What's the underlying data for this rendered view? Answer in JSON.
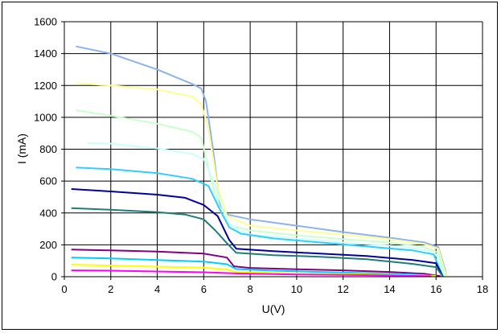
{
  "chart_data": {
    "type": "line",
    "title": "",
    "xlabel": "U(V)",
    "ylabel": "I (mA)",
    "xlim": [
      0,
      18
    ],
    "ylim": [
      0,
      1600
    ],
    "xticks": [
      0,
      2,
      4,
      6,
      8,
      10,
      12,
      14,
      16,
      18
    ],
    "yticks": [
      0,
      200,
      400,
      600,
      800,
      1000,
      1200,
      1400,
      1600
    ],
    "grid": true,
    "legend": "none",
    "series": [
      {
        "color": "#8fb2e8",
        "points": [
          [
            0.5,
            1445
          ],
          [
            2,
            1400
          ],
          [
            4,
            1300
          ],
          [
            5.5,
            1210
          ],
          [
            5.9,
            1180
          ],
          [
            6.1,
            1100
          ],
          [
            6.4,
            800
          ],
          [
            6.7,
            450
          ],
          [
            7,
            390
          ],
          [
            8,
            360
          ],
          [
            10,
            320
          ],
          [
            12,
            280
          ],
          [
            14,
            245
          ],
          [
            15.5,
            215
          ],
          [
            16.1,
            185
          ],
          [
            16.4,
            40
          ],
          [
            16.45,
            0
          ]
        ]
      },
      {
        "color": "#ffff99",
        "points": [
          [
            0.5,
            1215
          ],
          [
            2,
            1200
          ],
          [
            4,
            1175
          ],
          [
            5.5,
            1130
          ],
          [
            5.9,
            1080
          ],
          [
            6.2,
            930
          ],
          [
            6.6,
            560
          ],
          [
            7,
            380
          ],
          [
            8,
            320
          ],
          [
            10,
            290
          ],
          [
            12,
            265
          ],
          [
            14,
            235
          ],
          [
            15.5,
            205
          ],
          [
            16.1,
            175
          ],
          [
            16.45,
            0
          ]
        ]
      },
      {
        "color": "#ccffcc",
        "points": [
          [
            0.5,
            1045
          ],
          [
            2,
            1010
          ],
          [
            4,
            960
          ],
          [
            5.5,
            910
          ],
          [
            5.9,
            870
          ],
          [
            6.3,
            620
          ],
          [
            6.8,
            380
          ],
          [
            7.2,
            320
          ],
          [
            8,
            290
          ],
          [
            10,
            260
          ],
          [
            12,
            235
          ],
          [
            14,
            215
          ],
          [
            15.5,
            185
          ],
          [
            16.1,
            150
          ],
          [
            16.4,
            0
          ]
        ]
      },
      {
        "color": "#ccffff",
        "points": [
          [
            1,
            840
          ],
          [
            2,
            835
          ],
          [
            4,
            805
          ],
          [
            5.5,
            770
          ],
          [
            6,
            740
          ],
          [
            6.5,
            570
          ],
          [
            7,
            345
          ],
          [
            7.5,
            290
          ],
          [
            8,
            265
          ],
          [
            10,
            240
          ],
          [
            12,
            215
          ],
          [
            14,
            195
          ],
          [
            15.5,
            170
          ],
          [
            16,
            140
          ],
          [
            16.4,
            0
          ]
        ]
      },
      {
        "color": "#33ccff",
        "points": [
          [
            0.5,
            685
          ],
          [
            2,
            675
          ],
          [
            4,
            650
          ],
          [
            5.5,
            615
          ],
          [
            6.2,
            570
          ],
          [
            6.7,
            420
          ],
          [
            7.1,
            310
          ],
          [
            7.6,
            270
          ],
          [
            9,
            240
          ],
          [
            11,
            215
          ],
          [
            13,
            190
          ],
          [
            15,
            165
          ],
          [
            15.9,
            140
          ],
          [
            16.3,
            0
          ]
        ]
      },
      {
        "color": "#000099",
        "points": [
          [
            0.3,
            550
          ],
          [
            2,
            535
          ],
          [
            4,
            515
          ],
          [
            5.2,
            495
          ],
          [
            6,
            450
          ],
          [
            6.6,
            380
          ],
          [
            7.1,
            230
          ],
          [
            7.4,
            175
          ],
          [
            9,
            160
          ],
          [
            11,
            145
          ],
          [
            13,
            130
          ],
          [
            15,
            105
          ],
          [
            16,
            85
          ],
          [
            16.3,
            0
          ]
        ]
      },
      {
        "color": "#227b7b",
        "points": [
          [
            0.3,
            430
          ],
          [
            2,
            420
          ],
          [
            4,
            405
          ],
          [
            5.2,
            390
          ],
          [
            6,
            360
          ],
          [
            6.5,
            290
          ],
          [
            7,
            210
          ],
          [
            7.4,
            150
          ],
          [
            9,
            135
          ],
          [
            11,
            125
          ],
          [
            13,
            110
          ],
          [
            15,
            80
          ],
          [
            16,
            60
          ],
          [
            16.3,
            0
          ]
        ]
      },
      {
        "color": "#800080",
        "points": [
          [
            0.3,
            170
          ],
          [
            2,
            165
          ],
          [
            4,
            158
          ],
          [
            6,
            145
          ],
          [
            7,
            120
          ],
          [
            7.3,
            65
          ],
          [
            8,
            55
          ],
          [
            10,
            47
          ],
          [
            12,
            40
          ],
          [
            14,
            30
          ],
          [
            15.5,
            18
          ],
          [
            16.2,
            3
          ]
        ]
      },
      {
        "color": "#00ccff",
        "points": [
          [
            0.3,
            120
          ],
          [
            2,
            115
          ],
          [
            4,
            105
          ],
          [
            6,
            95
          ],
          [
            7,
            78
          ],
          [
            7.4,
            48
          ],
          [
            9,
            38
          ],
          [
            11,
            30
          ],
          [
            13,
            22
          ],
          [
            15,
            14
          ],
          [
            16,
            5
          ]
        ]
      },
      {
        "color": "#ffff00",
        "points": [
          [
            0.3,
            75
          ],
          [
            2,
            70
          ],
          [
            4,
            63
          ],
          [
            6,
            57
          ],
          [
            7,
            46
          ],
          [
            7.4,
            30
          ],
          [
            9,
            24
          ],
          [
            11,
            19
          ],
          [
            13,
            14
          ],
          [
            15,
            9
          ],
          [
            16,
            4
          ]
        ]
      },
      {
        "color": "#ff00ff",
        "points": [
          [
            0.3,
            40
          ],
          [
            2,
            38
          ],
          [
            4,
            33
          ],
          [
            6,
            28
          ],
          [
            7.5,
            20
          ],
          [
            10,
            14
          ],
          [
            12,
            11
          ],
          [
            14,
            8
          ],
          [
            15.8,
            3
          ]
        ]
      }
    ]
  }
}
